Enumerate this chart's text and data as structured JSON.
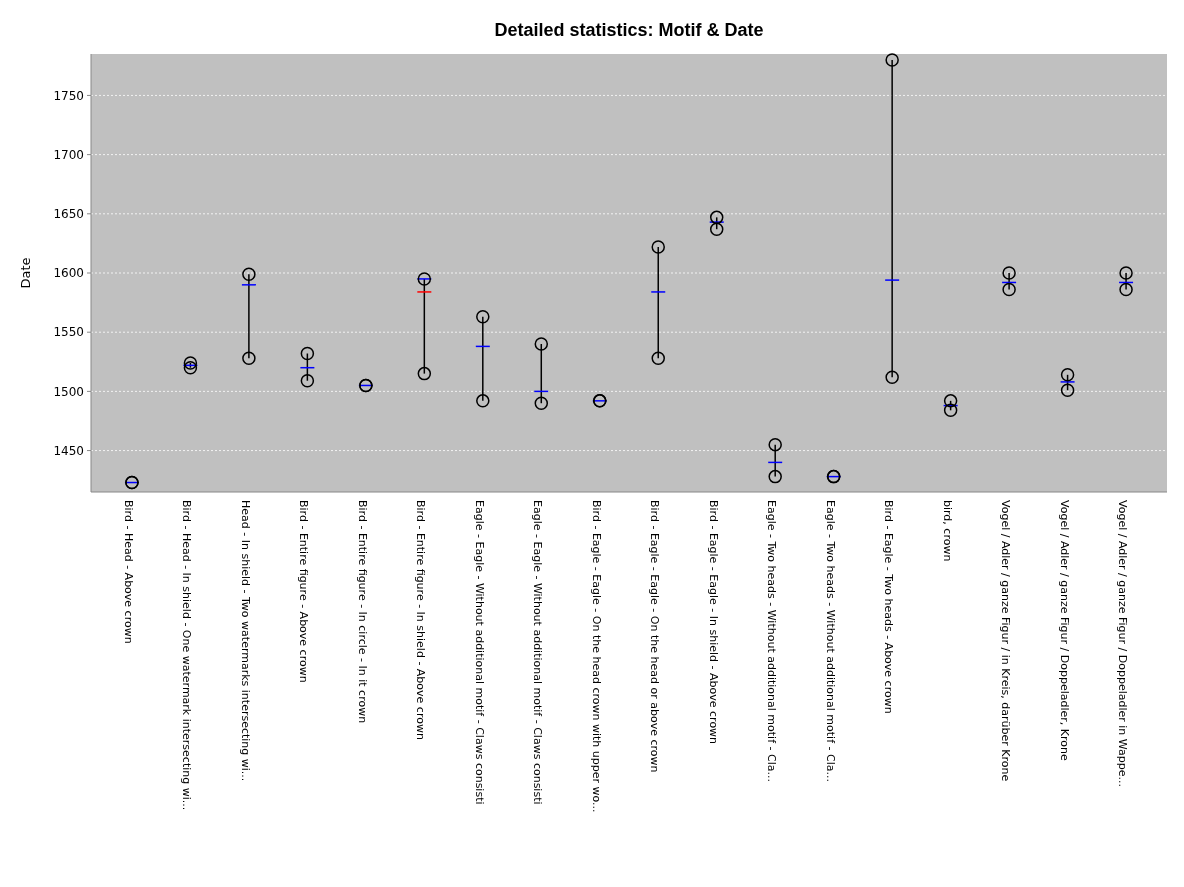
{
  "chart_data": {
    "type": "box",
    "title": "Detailed statistics: Motif & Date",
    "ylabel": "Date",
    "categories": [
      "Bird - Head - Above crown",
      "Bird - Head - In shield - One watermark intersecting wi...",
      "Head - In shield - Two watermarks intersecting wi...",
      "Bird - Entire figure - Above crown",
      "Bird - Entire figure - In circle - In it crown",
      "Bird - Entire figure - In shield - Above crown",
      "Eagle - Eagle - Without additional motif - Claws consisti",
      "Eagle - Eagle - Without additional motif - Claws consisti",
      "Bird - Eagle - Eagle - On the head crown with upper wo...",
      "Bird - Eagle - Eagle - On the head or above crown",
      "Bird - Eagle - Eagle - In shield - Above crown",
      "Eagle - Two heads - Without additional motif - Cla...",
      "Eagle - Two heads - Without additional motif - Cla...",
      "Bird - Eagle - Two heads - Above crown",
      "bird, crown",
      "Vogel / Adler / ganze Figur / in Kreis, darüber Krone",
      "Vogel / Adler / ganze Figur / Doppeladler, Krone",
      "Vogel / Adler / ganze Figur / Doppeladler in Wappe..."
    ],
    "series": [
      {
        "type": "box",
        "color": "#0000ff",
        "boxes": [
          {
            "low": 1423,
            "q1": 1423,
            "median": 1423,
            "q3": 1423,
            "high": 1423
          },
          {
            "low": 1520,
            "q1": 1522,
            "median": 1522,
            "q3": 1522,
            "high": 1524
          },
          {
            "low": 1528,
            "q1": 1590,
            "median": 1590,
            "q3": 1590,
            "high": 1599
          },
          {
            "low": 1509,
            "q1": 1520,
            "median": 1520,
            "q3": 1520,
            "high": 1532
          },
          {
            "low": 1505,
            "q1": 1505,
            "median": 1505,
            "q3": 1505,
            "high": 1505
          },
          {
            "low": 1515,
            "q1": 1595,
            "median": 1595,
            "q3": 1595,
            "high": 1595,
            "mean": 1584
          },
          {
            "low": 1492,
            "q1": 1538,
            "median": 1538,
            "q3": 1538,
            "high": 1563
          },
          {
            "low": 1490,
            "q1": 1500,
            "median": 1500,
            "q3": 1500,
            "high": 1540
          },
          {
            "low": 1492,
            "q1": 1492,
            "median": 1492,
            "q3": 1492,
            "high": 1492
          },
          {
            "low": 1528,
            "q1": 1584,
            "median": 1584,
            "q3": 1584,
            "high": 1622
          },
          {
            "low": 1637,
            "q1": 1643,
            "median": 1643,
            "q3": 1643,
            "high": 1647
          },
          {
            "low": 1428,
            "q1": 1440,
            "median": 1440,
            "q3": 1440,
            "high": 1455
          },
          {
            "low": 1428,
            "q1": 1428,
            "median": 1428,
            "q3": 1428,
            "high": 1428
          },
          {
            "low": 1512,
            "q1": 1594,
            "median": 1594,
            "q3": 1594,
            "high": 1780
          },
          {
            "low": 1484,
            "q1": 1488,
            "median": 1488,
            "q3": 1488,
            "high": 1492
          },
          {
            "low": 1586,
            "q1": 1592,
            "median": 1592,
            "q3": 1592,
            "high": 1600
          },
          {
            "low": 1501,
            "q1": 1508,
            "median": 1508,
            "q3": 1508,
            "high": 1514
          },
          {
            "low": 1586,
            "q1": 1592,
            "median": 1592,
            "q3": 1592,
            "high": 1600
          }
        ]
      },
      {
        "type": "scatter",
        "marker": "circle",
        "color": "#000000",
        "values": [
          1423,
          1524,
          1599,
          1532,
          1505,
          1595,
          1563,
          1540,
          1492,
          1622,
          1647,
          1455,
          1428,
          1780,
          1492,
          1600,
          1514,
          1600
        ]
      },
      {
        "type": "scatter",
        "marker": "circle",
        "color": "#000000",
        "values": [
          1423,
          1520,
          1528,
          1509,
          1505,
          1515,
          1492,
          1490,
          1492,
          1528,
          1637,
          1428,
          1428,
          1512,
          1484,
          1586,
          1501,
          1586
        ]
      }
    ],
    "ylim": [
      1415,
      1785
    ],
    "yticks": [
      1450,
      1500,
      1550,
      1600,
      1650,
      1700,
      1750
    ],
    "grid": "y"
  }
}
